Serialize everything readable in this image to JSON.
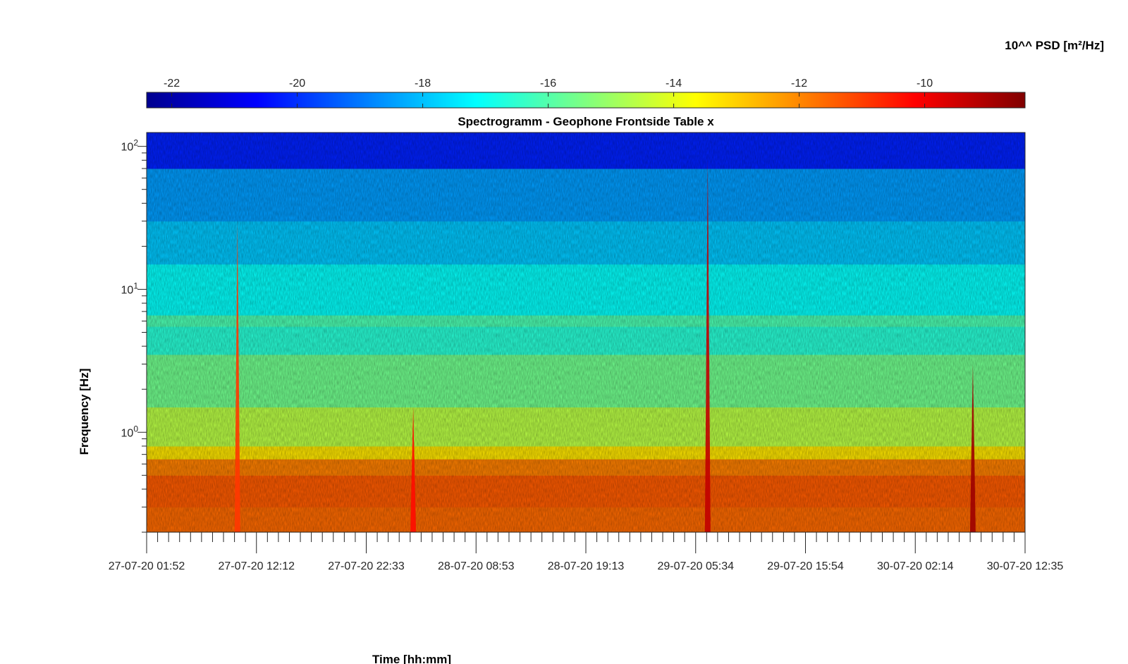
{
  "chart_data": {
    "type": "heatmap",
    "title": "Spectrogramm - Geophone Frontside Table x",
    "xlabel": "Time [hh:mm]",
    "ylabel": "Frequency [Hz]",
    "colorbar_label": "10^^ PSD [m²/Hz]",
    "colormap": "jet",
    "x_tick_labels": [
      "27-07-20 01:52",
      "27-07-20 12:12",
      "27-07-20 22:33",
      "28-07-20 08:53",
      "28-07-20 19:13",
      "29-07-20 05:34",
      "29-07-20 15:54",
      "30-07-20 02:14",
      "30-07-20 12:35"
    ],
    "xlim": [
      "27-07-20 01:52",
      "30-07-20 12:35"
    ],
    "y_scale": "log",
    "ylim": [
      0.2,
      125
    ],
    "y_ticks": [
      {
        "value": 1,
        "base": "10",
        "exp": "0"
      },
      {
        "value": 10,
        "base": "10",
        "exp": "1"
      },
      {
        "value": 100,
        "base": "10",
        "exp": "2"
      }
    ],
    "colorbar_ticks": [
      "-22",
      "-20",
      "-18",
      "-16",
      "-14",
      "-12",
      "-10"
    ],
    "color_range": [
      -22.4,
      -8.4
    ],
    "grid": false,
    "bands": [
      {
        "f_low": 0.2,
        "f_high": 0.3,
        "log_psd": -11.6
      },
      {
        "f_low": 0.3,
        "f_high": 0.5,
        "log_psd": -11.4
      },
      {
        "f_low": 0.5,
        "f_high": 0.65,
        "log_psd": -11.9
      },
      {
        "f_low": 0.65,
        "f_high": 0.8,
        "log_psd": -13.3
      },
      {
        "f_low": 0.8,
        "f_high": 1.5,
        "log_psd": -14.6
      },
      {
        "f_low": 1.5,
        "f_high": 3.5,
        "log_psd": -15.6
      },
      {
        "f_low": 3.5,
        "f_high": 5.5,
        "log_psd": -16.6
      },
      {
        "f_low": 5.5,
        "f_high": 6.6,
        "log_psd": -16.1
      },
      {
        "f_low": 6.6,
        "f_high": 15,
        "log_psd": -17.1
      },
      {
        "f_low": 15,
        "f_high": 30,
        "log_psd": -17.9
      },
      {
        "f_low": 30,
        "f_high": 70,
        "log_psd": -18.5
      },
      {
        "f_low": 70,
        "f_high": 125,
        "log_psd": -20.2
      }
    ],
    "events": [
      {
        "time": "27-07-20 10:25",
        "f_top": 30,
        "log_psd": -10.9
      },
      {
        "time": "28-07-20 02:58",
        "f_top": 1.5,
        "log_psd": -10.3
      },
      {
        "time": "29-07-20 06:42",
        "f_top": 80,
        "log_psd": -9.3
      },
      {
        "time": "30-07-20 07:40",
        "f_top": 3,
        "log_psd": -8.8
      }
    ]
  }
}
